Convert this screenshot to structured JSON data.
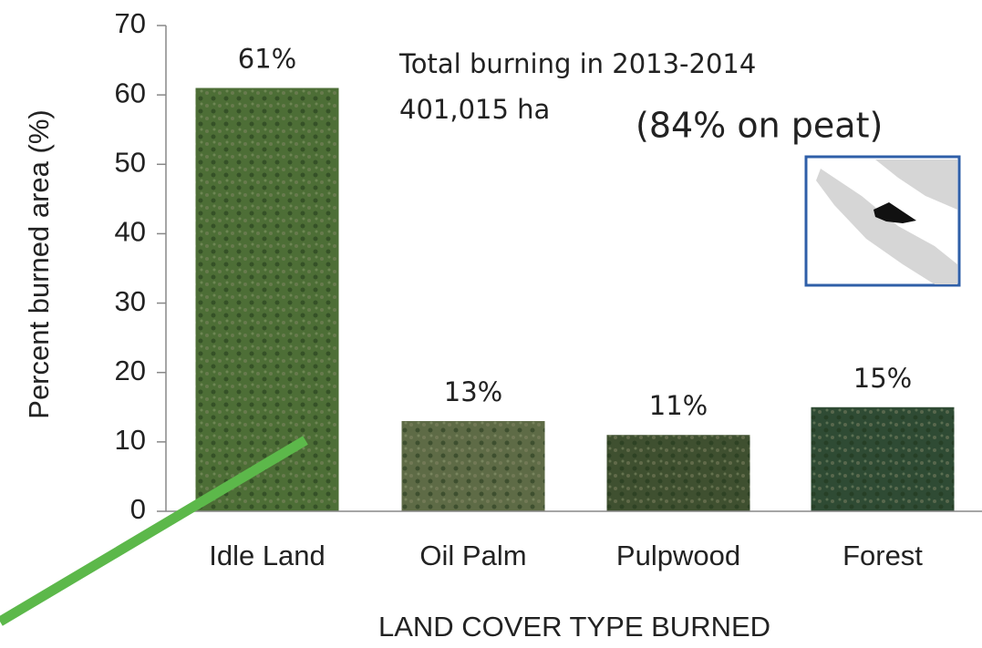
{
  "chart_data": {
    "type": "bar",
    "y_label": "Percent burned area (%)",
    "x_label": "LAND COVER TYPE BURNED",
    "categories": [
      "Idle Land",
      "Oil Palm",
      "Pulpwood",
      "Forest"
    ],
    "values": [
      61,
      13,
      11,
      15
    ],
    "value_labels": [
      "61%",
      "13%",
      "11%",
      "15%"
    ],
    "colors": [
      "#4d6e36",
      "#5e6b46",
      "#3f5030",
      "#2f4b34"
    ],
    "ylim": [
      0,
      70
    ],
    "yticks": [
      0,
      10,
      20,
      30,
      40,
      50,
      60,
      70
    ],
    "annotations": [
      "Total  burning in 2013-2014",
      "401,015 ha",
      "(84% on peat)"
    ]
  }
}
